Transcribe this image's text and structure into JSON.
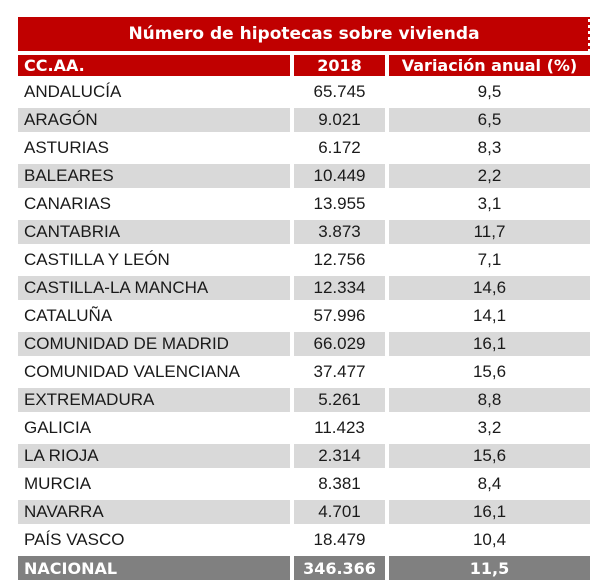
{
  "table": {
    "title": "Número de hipotecas sobre vivienda",
    "columns": [
      "CC.AA.",
      "2018",
      "Variación anual (%)"
    ],
    "rows": [
      {
        "name": "ANDALUCÍA",
        "value_2018": "65.745",
        "variation": "9,5"
      },
      {
        "name": "ARAGÓN",
        "value_2018": "9.021",
        "variation": "6,5"
      },
      {
        "name": "ASTURIAS",
        "value_2018": "6.172",
        "variation": "8,3"
      },
      {
        "name": "BALEARES",
        "value_2018": "10.449",
        "variation": "2,2"
      },
      {
        "name": "CANARIAS",
        "value_2018": "13.955",
        "variation": "3,1"
      },
      {
        "name": "CANTABRIA",
        "value_2018": "3.873",
        "variation": "11,7"
      },
      {
        "name": "CASTILLA Y LEÓN",
        "value_2018": "12.756",
        "variation": "7,1"
      },
      {
        "name": "CASTILLA-LA MANCHA",
        "value_2018": "12.334",
        "variation": "14,6"
      },
      {
        "name": "CATALUÑA",
        "value_2018": "57.996",
        "variation": "14,1"
      },
      {
        "name": "COMUNIDAD DE MADRID",
        "value_2018": "66.029",
        "variation": "16,1"
      },
      {
        "name": "COMUNIDAD VALENCIANA",
        "value_2018": "37.477",
        "variation": "15,6"
      },
      {
        "name": "EXTREMADURA",
        "value_2018": "5.261",
        "variation": "8,8"
      },
      {
        "name": "GALICIA",
        "value_2018": "11.423",
        "variation": "3,2"
      },
      {
        "name": "LA RIOJA",
        "value_2018": "2.314",
        "variation": "15,6"
      },
      {
        "name": "MURCIA",
        "value_2018": "8.381",
        "variation": "8,4"
      },
      {
        "name": "NAVARRA",
        "value_2018": "4.701",
        "variation": "16,1"
      },
      {
        "name": "PAÍS VASCO",
        "value_2018": "18.479",
        "variation": "10,4"
      }
    ],
    "footer": {
      "name": "NACIONAL",
      "value_2018": "346.366",
      "variation": "11,5"
    }
  },
  "colors": {
    "header_red": "#C00000",
    "row_alt_gray": "#D9D9D9",
    "footer_gray": "#808080",
    "header_text": "#FFFFFF",
    "body_text": "#1A1A1A"
  },
  "chart_data": {
    "type": "table",
    "title": "Número de hipotecas sobre vivienda",
    "columns": [
      "CC.AA.",
      "2018",
      "Variación anual (%)"
    ],
    "rows": [
      [
        "ANDALUCÍA",
        65745,
        9.5
      ],
      [
        "ARAGÓN",
        9021,
        6.5
      ],
      [
        "ASTURIAS",
        6172,
        8.3
      ],
      [
        "BALEARES",
        10449,
        2.2
      ],
      [
        "CANARIAS",
        13955,
        3.1
      ],
      [
        "CANTABRIA",
        3873,
        11.7
      ],
      [
        "CASTILLA Y LEÓN",
        12756,
        7.1
      ],
      [
        "CASTILLA-LA MANCHA",
        12334,
        14.6
      ],
      [
        "CATALUÑA",
        57996,
        14.1
      ],
      [
        "COMUNIDAD DE MADRID",
        66029,
        16.1
      ],
      [
        "COMUNIDAD VALENCIANA",
        37477,
        15.6
      ],
      [
        "EXTREMADURA",
        5261,
        8.8
      ],
      [
        "GALICIA",
        11423,
        3.2
      ],
      [
        "LA RIOJA",
        2314,
        15.6
      ],
      [
        "MURCIA",
        8381,
        8.4
      ],
      [
        "NAVARRA",
        4701,
        16.1
      ],
      [
        "PAÍS VASCO",
        18479,
        10.4
      ]
    ],
    "footer": [
      "NACIONAL",
      346366,
      11.5
    ],
    "number_format": "es-ES (thousands '.', decimals ',')",
    "row_striping": [
      "white",
      "light-gray"
    ]
  }
}
